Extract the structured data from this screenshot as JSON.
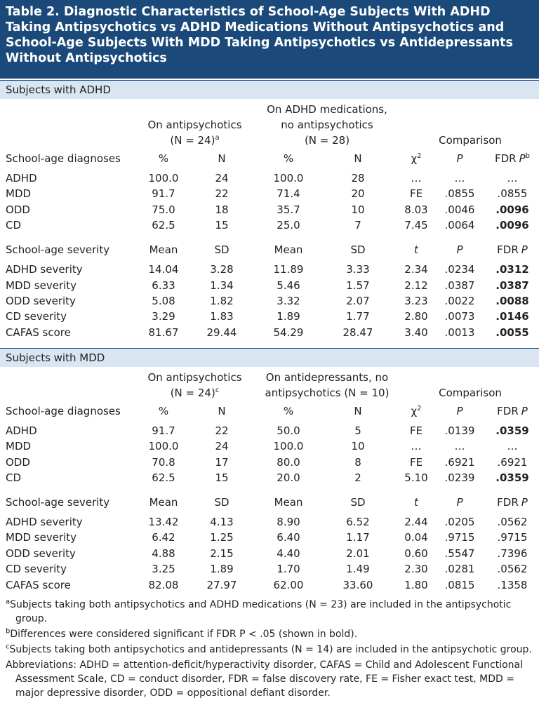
{
  "title": "Table 2. Diagnostic Characteristics of School-Age Subjects With ADHD Taking Antipsychotics vs ADHD Medications Without Antipsychotics and School-Age Subjects With MDD Taking Antipsychotics vs Antidepressants Without Antipsychotics",
  "sections": [
    {
      "heading": "Subjects with ADHD",
      "groups": [
        {
          "lines": [
            "On antipsychotics",
            "(N = 24)"
          ],
          "note": "a"
        },
        {
          "lines": [
            "On ADHD medications,",
            "no antipsychotics",
            "(N = 28)"
          ]
        },
        {
          "lines": [
            "Comparison"
          ]
        }
      ],
      "blocks": [
        {
          "header": [
            {
              "text": "School-age diagnoses"
            },
            {
              "text": "%"
            },
            {
              "text": "N"
            },
            {
              "text": "%"
            },
            {
              "text": "N"
            },
            {
              "text": "χ",
              "sup": "2"
            },
            {
              "text": "P",
              "italic": true
            },
            {
              "text": "FDR",
              "italic_part": "P",
              "sup": "b"
            }
          ],
          "rows": [
            {
              "cells": [
                "ADHD",
                "100.0",
                "24",
                "100.0",
                "28",
                "…",
                "…",
                "…"
              ]
            },
            {
              "cells": [
                "MDD",
                "91.7",
                "22",
                "71.4",
                "20",
                "FE",
                ".0855",
                ".0855"
              ]
            },
            {
              "cells": [
                "ODD",
                "75.0",
                "18",
                "35.7",
                "10",
                "8.03",
                ".0046",
                ".0096"
              ],
              "bold": [
                7
              ]
            },
            {
              "cells": [
                "CD",
                "62.5",
                "15",
                "25.0",
                "7",
                "7.45",
                ".0064",
                ".0096"
              ],
              "bold": [
                7
              ]
            }
          ]
        },
        {
          "header": [
            {
              "text": "School-age severity"
            },
            {
              "text": "Mean"
            },
            {
              "text": "SD"
            },
            {
              "text": "Mean"
            },
            {
              "text": "SD"
            },
            {
              "text": "t",
              "italic": true
            },
            {
              "text": "P",
              "italic": true
            },
            {
              "text": "FDR",
              "italic_part": "P"
            }
          ],
          "rows": [
            {
              "cells": [
                "ADHD severity",
                "14.04",
                "3.28",
                "11.89",
                "3.33",
                "2.34",
                ".0234",
                ".0312"
              ],
              "bold": [
                7
              ]
            },
            {
              "cells": [
                "MDD severity",
                "6.33",
                "1.34",
                "5.46",
                "1.57",
                "2.12",
                ".0387",
                ".0387"
              ],
              "bold": [
                7
              ]
            },
            {
              "cells": [
                "ODD severity",
                "5.08",
                "1.82",
                "3.32",
                "2.07",
                "3.23",
                ".0022",
                ".0088"
              ],
              "bold": [
                7
              ]
            },
            {
              "cells": [
                "CD severity",
                "3.29",
                "1.83",
                "1.89",
                "1.77",
                "2.80",
                ".0073",
                ".0146"
              ],
              "bold": [
                7
              ]
            },
            {
              "cells": [
                "CAFAS score",
                "81.67",
                "29.44",
                "54.29",
                "28.47",
                "3.40",
                ".0013",
                ".0055"
              ],
              "bold": [
                7
              ]
            }
          ]
        }
      ]
    },
    {
      "heading": "Subjects with MDD",
      "groups": [
        {
          "lines": [
            "On antipsychotics",
            "(N = 24)"
          ],
          "note": "c"
        },
        {
          "lines": [
            "On antidepressants, no",
            "antipsychotics (N = 10)"
          ]
        },
        {
          "lines": [
            "Comparison"
          ]
        }
      ],
      "blocks": [
        {
          "header": [
            {
              "text": "School-age diagnoses"
            },
            {
              "text": "%"
            },
            {
              "text": "N"
            },
            {
              "text": "%"
            },
            {
              "text": "N"
            },
            {
              "text": "χ",
              "sup": "2"
            },
            {
              "text": "P",
              "italic": true
            },
            {
              "text": "FDR",
              "italic_part": "P"
            }
          ],
          "rows": [
            {
              "cells": [
                "ADHD",
                "91.7",
                "22",
                "50.0",
                "5",
                "FE",
                ".0139",
                ".0359"
              ],
              "bold": [
                7
              ]
            },
            {
              "cells": [
                "MDD",
                "100.0",
                "24",
                "100.0",
                "10",
                "…",
                "…",
                "…"
              ]
            },
            {
              "cells": [
                "ODD",
                "70.8",
                "17",
                "80.0",
                "8",
                "FE",
                ".6921",
                ".6921"
              ]
            },
            {
              "cells": [
                "CD",
                "62.5",
                "15",
                "20.0",
                "2",
                "5.10",
                ".0239",
                ".0359"
              ],
              "bold": [
                7
              ]
            }
          ]
        },
        {
          "header": [
            {
              "text": "School-age severity"
            },
            {
              "text": "Mean"
            },
            {
              "text": "SD"
            },
            {
              "text": "Mean"
            },
            {
              "text": "SD"
            },
            {
              "text": "t",
              "italic": true
            },
            {
              "text": "P",
              "italic": true
            },
            {
              "text": "FDR",
              "italic_part": "P"
            }
          ],
          "rows": [
            {
              "cells": [
                "ADHD severity",
                "13.42",
                "4.13",
                "8.90",
                "6.52",
                "2.44",
                ".0205",
                ".0562"
              ]
            },
            {
              "cells": [
                "MDD severity",
                "6.42",
                "1.25",
                "6.40",
                "1.17",
                "0.04",
                ".9715",
                ".9715"
              ]
            },
            {
              "cells": [
                "ODD severity",
                "4.88",
                "2.15",
                "4.40",
                "2.01",
                "0.60",
                ".5547",
                ".7396"
              ]
            },
            {
              "cells": [
                "CD severity",
                "3.25",
                "1.89",
                "1.70",
                "1.49",
                "2.30",
                ".0281",
                ".0562"
              ]
            },
            {
              "cells": [
                "CAFAS score",
                "82.08",
                "27.97",
                "62.00",
                "33.60",
                "1.80",
                ".0815",
                ".1358"
              ]
            }
          ]
        }
      ]
    }
  ],
  "footnotes": [
    {
      "mark": "a",
      "text": "Subjects taking both antipsychotics and ADHD medications (N = 23) are included in the antipsychotic group."
    },
    {
      "mark": "b",
      "text": "Differences were considered significant if FDR P < .05 (shown in bold)."
    },
    {
      "mark": "c",
      "text": "Subjects taking both antipsychotics and antidepressants (N = 14) are included in the antipsychotic group."
    }
  ],
  "abbreviations": "Abbreviations: ADHD = attention-deficit/hyperactivity disorder, CAFAS = Child and Adolescent Functional Assessment Scale, CD = conduct disorder, FDR = false discovery rate, FE = Fisher exact test, MDD = major depressive disorder, ODD = oppositional defiant disorder."
}
